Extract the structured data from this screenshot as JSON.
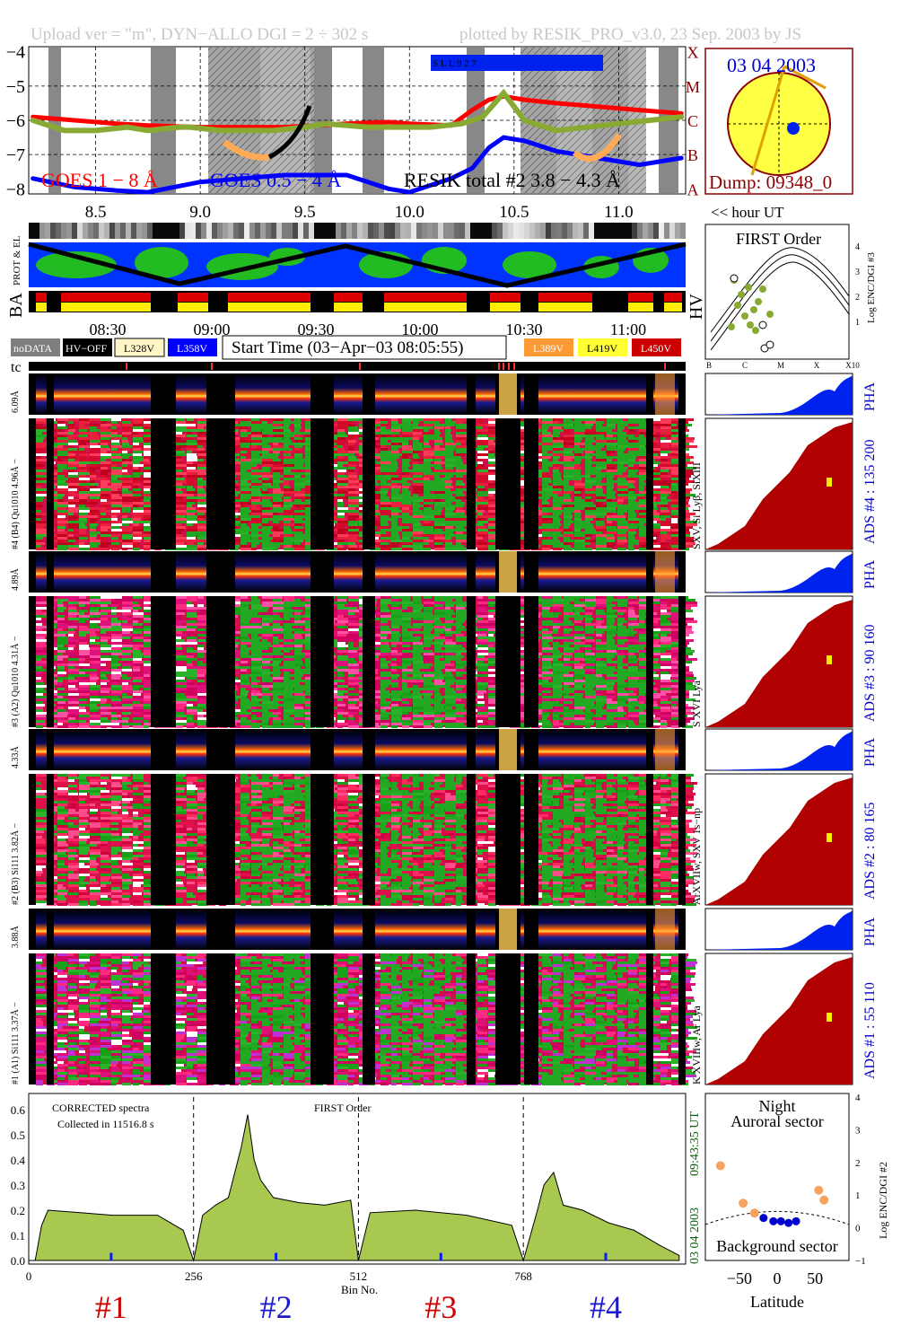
{
  "header": {
    "left": "Upload ver = \"m\", DYN−ALLO DGI =   2 ÷ 302 s",
    "right": "plotted by RESIK_PRO_v3.0, 23 Sep. 2003 by JS"
  },
  "goes_panel": {
    "y_ticks": [
      "−4",
      "−5",
      "−6",
      "−7",
      "−8"
    ],
    "flare_class": [
      "X",
      "M",
      "C",
      "B",
      "A"
    ],
    "legend_red": "GOES 1 − 8 Å",
    "legend_blue": "GOES 0.5 − 4 Å",
    "legend_black": "RESIK total #2  3.8 − 4.3 Å",
    "saa_label": "S L L 9 2 7",
    "hour_ticks": [
      "8.5",
      "9.0",
      "9.5",
      "10.0",
      "10.5",
      "11.0"
    ],
    "hour_label": "<< hour UT"
  },
  "sun_panel": {
    "date": "03 04 2003",
    "dump": "Dump: 09348_0"
  },
  "orbit": {
    "prot_label": "PROT & EL",
    "ba_label": "BA",
    "hv_label": "HV",
    "time_ticks": [
      "08:30",
      "09:00",
      "09:30",
      "10:00",
      "10:30",
      "11:00"
    ]
  },
  "first_order_panel": {
    "title": "FIRST Order",
    "ylabel": "Log ENC/DGI #3",
    "y_ticks": [
      "1",
      "2",
      "3",
      "4"
    ],
    "x_ticks": [
      "B",
      "C",
      "M",
      "X",
      "X10"
    ]
  },
  "legend_row": {
    "nodata": "noDATA",
    "hvoff": "HV−OFF",
    "v1": "L328V",
    "v2": "L358V",
    "start_time": "Start Time (03−Apr−03 08:05:55)",
    "v3": "L389V",
    "v4": "L419V",
    "v5": "L450V",
    "colors": {
      "nodata": "#7f7f7f",
      "hvoff": "#000000",
      "v1": "#fff6c8",
      "v2": "#0000ff",
      "v3": "#ff9933",
      "v4": "#ffff33",
      "v5": "#cc0000"
    }
  },
  "tc_label": "tc",
  "channels": [
    {
      "pha_label": "6.09Å",
      "ads_label": "#4 (B4) Qu1010 4.96Å −",
      "ion_label": "SXV, Si Lyβ, SiXIII",
      "ads_right": "ADS #4 :  135 200"
    },
    {
      "pha_label": "4.89Å",
      "ads_label": "#3 (A2) Qu1010 4.31Å −",
      "ion_label": "S XVI Lya",
      "ads_right": "ADS #3 :   90 160"
    },
    {
      "pha_label": "4.33Å",
      "ads_label": "#2 (B3) Si111 3.82Å −",
      "ion_label": "ArXVIIw, SXV 1s−np",
      "ads_right": "ADS #2 :   80 165"
    },
    {
      "pha_label": "3.88Å",
      "ads_label": "#1 (A1) Si111 3.37Å −",
      "ion_label": "K XVIIIw, Ar Lya",
      "ads_right": "ADS #1 :   55 110"
    }
  ],
  "pha_tag": "PHA",
  "spectrum_panel": {
    "note1": "CORRECTED spectra",
    "note2": "Collected in 11516.8 s",
    "order": "FIRST Order",
    "side_date": "03 04 2003",
    "side_time": "09:43:35 UT",
    "y_ticks": [
      "0.0",
      "0.1",
      "0.2",
      "0.3",
      "0.4",
      "0.5",
      "0.6"
    ],
    "x_ticks": [
      "0",
      "256",
      "512",
      "768"
    ],
    "xlabel": "Bin No.",
    "channel_tags": [
      {
        "text": "#1",
        "color": "#cc0000"
      },
      {
        "text": "#2",
        "color": "#1a1acc"
      },
      {
        "text": "#3",
        "color": "#cc0000"
      },
      {
        "text": "#4",
        "color": "#1a1acc"
      }
    ]
  },
  "latitude_panel": {
    "title1": "Night",
    "title2": "Auroral sector",
    "bottom": "Background sector",
    "ylabel": "Log ENC/DGI #2",
    "y_ticks": [
      "−1",
      "0",
      "1",
      "2",
      "3",
      "4"
    ],
    "x_ticks": [
      "−50",
      "0",
      "50"
    ],
    "xlabel": "Latitude"
  },
  "chart_data": [
    {
      "type": "line",
      "title": "",
      "xlabel": "hour UT",
      "ylabel": "",
      "xlim": [
        8.18,
        11.32
      ],
      "ylim": [
        -8.15,
        -3.85
      ],
      "series": [
        {
          "name": "GOES 1 − 8 Å",
          "color": "#ff0000",
          "x": [
            8.2,
            8.4,
            8.6,
            8.75,
            9.0,
            9.4,
            9.7,
            9.9,
            10.0,
            10.2,
            10.3,
            10.38,
            10.45,
            10.55,
            10.7,
            10.9,
            11.1,
            11.3
          ],
          "y": [
            -5.9,
            -6.0,
            -6.1,
            -6.15,
            -6.2,
            -6.2,
            -6.1,
            -6.05,
            -6.1,
            -6.15,
            -5.7,
            -5.4,
            -5.3,
            -5.4,
            -5.5,
            -5.6,
            -5.7,
            -5.8
          ]
        },
        {
          "name": "GOES 0.5 − 4 Å",
          "color": "#0000ff",
          "x": [
            8.2,
            8.4,
            8.6,
            8.75,
            9.0,
            9.4,
            9.7,
            9.9,
            10.0,
            10.2,
            10.3,
            10.38,
            10.45,
            10.55,
            10.7,
            10.9,
            11.1,
            11.3
          ],
          "y": [
            -7.7,
            -7.95,
            -8.05,
            -8.1,
            -7.8,
            -7.6,
            -7.6,
            -8.0,
            -8.1,
            -7.7,
            -7.4,
            -6.8,
            -6.5,
            -6.6,
            -6.9,
            -7.1,
            -7.3,
            -7.1
          ]
        },
        {
          "name": "RESIK total #2  3.8 − 4.3 Å",
          "color": "#88aa33",
          "x": [
            8.2,
            8.35,
            8.5,
            8.65,
            8.75,
            8.9,
            8.95,
            9.1,
            9.35,
            9.5,
            9.6,
            9.8,
            9.95,
            10.1,
            10.25,
            10.35,
            10.45,
            10.55,
            10.7,
            10.85,
            11.0,
            11.15,
            11.3
          ],
          "y": [
            -6.0,
            -6.3,
            -6.3,
            -6.2,
            -6.3,
            -6.2,
            -6.2,
            -6.3,
            -6.3,
            -6.2,
            -6.1,
            -6.2,
            -6.2,
            -6.2,
            -6.1,
            -5.9,
            -5.2,
            -6.0,
            -6.3,
            -6.2,
            -6.1,
            -6.0,
            -5.9
          ]
        }
      ]
    },
    {
      "type": "area",
      "title": "FIRST Order",
      "xlabel": "Bin No.",
      "ylabel": "",
      "xlim": [
        0,
        1020
      ],
      "ylim": [
        0,
        0.65
      ],
      "series": [
        {
          "name": "",
          "color": "#9acd32",
          "x": [
            0,
            10,
            20,
            30,
            80,
            130,
            200,
            240,
            256,
            270,
            290,
            310,
            330,
            340,
            350,
            360,
            380,
            420,
            460,
            500,
            512,
            530,
            600,
            680,
            750,
            768,
            790,
            800,
            815,
            830,
            860,
            900,
            940,
            980,
            1010
          ],
          "y": [
            0.0,
            0.0,
            0.14,
            0.2,
            0.19,
            0.18,
            0.18,
            0.12,
            0.0,
            0.18,
            0.22,
            0.25,
            0.45,
            0.58,
            0.4,
            0.32,
            0.25,
            0.23,
            0.22,
            0.24,
            0.0,
            0.19,
            0.2,
            0.18,
            0.14,
            0.0,
            0.2,
            0.3,
            0.35,
            0.22,
            0.2,
            0.15,
            0.12,
            0.06,
            0.02
          ]
        }
      ]
    },
    {
      "type": "scatter",
      "title": "",
      "xlabel": "Latitude",
      "ylabel": "Log ENC/DGI #2",
      "xlim": [
        -95,
        95
      ],
      "ylim": [
        -1,
        4
      ],
      "series": [
        {
          "name": "",
          "color": "#f4a460",
          "x": [
            -75,
            -45,
            -30,
            55,
            62
          ],
          "y": [
            1.9,
            0.75,
            0.45,
            1.15,
            0.85
          ]
        },
        {
          "name": "",
          "color": "#0000cc",
          "x": [
            -18,
            -5,
            5,
            15,
            25
          ],
          "y": [
            0.3,
            0.2,
            0.2,
            0.15,
            0.2
          ]
        }
      ]
    }
  ]
}
